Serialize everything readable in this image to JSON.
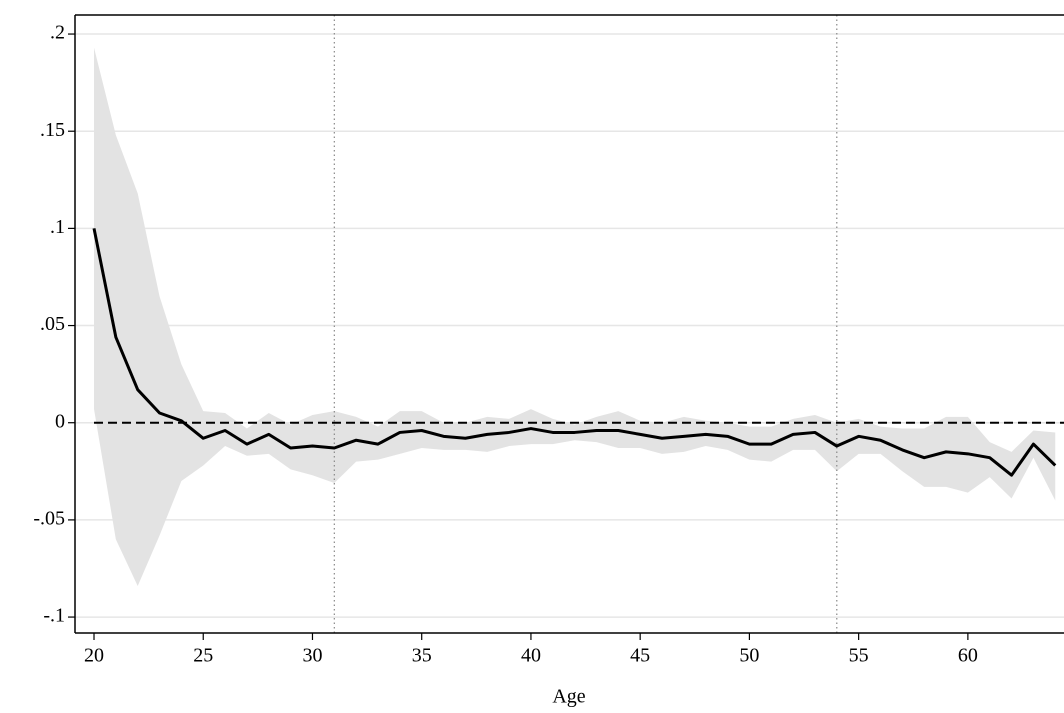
{
  "chart_data": {
    "type": "line",
    "x_label": "Age",
    "x": [
      20,
      21,
      22,
      23,
      24,
      25,
      26,
      27,
      28,
      29,
      30,
      31,
      32,
      33,
      34,
      35,
      36,
      37,
      38,
      39,
      40,
      41,
      42,
      43,
      44,
      45,
      46,
      47,
      48,
      49,
      50,
      51,
      52,
      53,
      54,
      55,
      56,
      57,
      58,
      59,
      60,
      61,
      62,
      63,
      64
    ],
    "series": [
      {
        "color": "#000000",
        "values": [
          0.1,
          0.044,
          0.017,
          0.005,
          0.001,
          -0.008,
          -0.004,
          -0.011,
          -0.006,
          -0.013,
          -0.012,
          -0.013,
          -0.009,
          -0.011,
          -0.005,
          -0.004,
          -0.007,
          -0.008,
          -0.006,
          -0.005,
          -0.003,
          -0.005,
          -0.005,
          -0.004,
          -0.004,
          -0.006,
          -0.008,
          -0.007,
          -0.006,
          -0.007,
          -0.011,
          -0.011,
          -0.006,
          -0.005,
          -0.012,
          -0.007,
          -0.009,
          -0.014,
          -0.018,
          -0.015,
          -0.016,
          -0.018,
          -0.027,
          -0.011,
          -0.022
        ]
      }
    ],
    "band": {
      "color": "#e3e3e3",
      "upper": [
        0.193,
        0.148,
        0.118,
        0.065,
        0.03,
        0.006,
        0.005,
        -0.003,
        0.005,
        -0.001,
        0.004,
        0.006,
        0.003,
        -0.002,
        0.006,
        0.006,
        0.0,
        0.0,
        0.003,
        0.002,
        0.007,
        0.002,
        -0.001,
        0.003,
        0.006,
        0.001,
        0.0,
        0.003,
        0.001,
        0.0,
        -0.002,
        -0.002,
        0.002,
        0.004,
        0.0,
        0.002,
        -0.002,
        -0.003,
        -0.003,
        0.003,
        0.003,
        -0.01,
        -0.015,
        -0.004,
        -0.005
      ],
      "lower": [
        0.007,
        -0.06,
        -0.084,
        -0.058,
        -0.03,
        -0.022,
        -0.012,
        -0.017,
        -0.016,
        -0.024,
        -0.027,
        -0.031,
        -0.02,
        -0.019,
        -0.016,
        -0.013,
        -0.014,
        -0.014,
        -0.015,
        -0.012,
        -0.011,
        -0.011,
        -0.009,
        -0.01,
        -0.013,
        -0.013,
        -0.016,
        -0.015,
        -0.012,
        -0.014,
        -0.019,
        -0.02,
        -0.014,
        -0.014,
        -0.025,
        -0.016,
        -0.016,
        -0.025,
        -0.033,
        -0.033,
        -0.036,
        -0.028,
        -0.039,
        -0.018,
        -0.04
      ]
    },
    "hline": 0,
    "vlines": [
      31,
      54
    ],
    "xlim": [
      19.13,
      64.4
    ],
    "ylim": [
      -0.1082,
      0.2098
    ],
    "xticks": [
      20,
      25,
      30,
      35,
      40,
      45,
      50,
      55,
      60
    ],
    "yticks": [
      {
        "value": 0.2,
        "label": ".2"
      },
      {
        "value": 0.15,
        "label": ".15"
      },
      {
        "value": 0.1,
        "label": ".1"
      },
      {
        "value": 0.05,
        "label": ".05"
      },
      0,
      {
        "value": -0.05,
        "label": "-.05"
      },
      {
        "value": -0.1,
        "label": "-.1"
      }
    ],
    "grid": true
  }
}
